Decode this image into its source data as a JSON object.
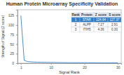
{
  "chart_data": {
    "type": "line",
    "title": "Human Protein Microarray Specificity Validation",
    "x_label": "Signal Rank",
    "y_label": "Strength of Signal (Z score)",
    "x": [
      1,
      2,
      3,
      4,
      5,
      6,
      7,
      8,
      9,
      10,
      11,
      12,
      13,
      14,
      15,
      16,
      17,
      18,
      19,
      20,
      21,
      22,
      23,
      24,
      25,
      26,
      27,
      28,
      29,
      30
    ],
    "values": [
      124.64,
      7.27,
      4.36,
      3.5,
      3.0,
      2.7,
      2.5,
      2.3,
      2.1,
      2.0,
      1.9,
      1.8,
      1.7,
      1.6,
      1.5,
      1.5,
      1.4,
      1.4,
      1.3,
      1.3,
      1.2,
      1.2,
      1.1,
      1.1,
      1.0,
      1.0,
      1.0,
      0.9,
      0.9,
      0.9
    ],
    "color": "#4a90d9",
    "xlim": [
      0,
      31
    ],
    "xticks": [
      1,
      10,
      20,
      30
    ],
    "ylim": [
      0,
      140
    ],
    "yticks": [
      0,
      25,
      50,
      75,
      100,
      125
    ],
    "grid": false,
    "table": {
      "columns": [
        "Rank",
        "Protein",
        "Z score",
        "S score"
      ],
      "rows": [
        [
          "1",
          "STAR",
          "124.64",
          "127.37"
        ],
        [
          "2",
          "ALPP",
          "7.27",
          "2.91"
        ],
        [
          "3",
          "ITIH5",
          "4.36",
          "0.30"
        ]
      ]
    }
  }
}
